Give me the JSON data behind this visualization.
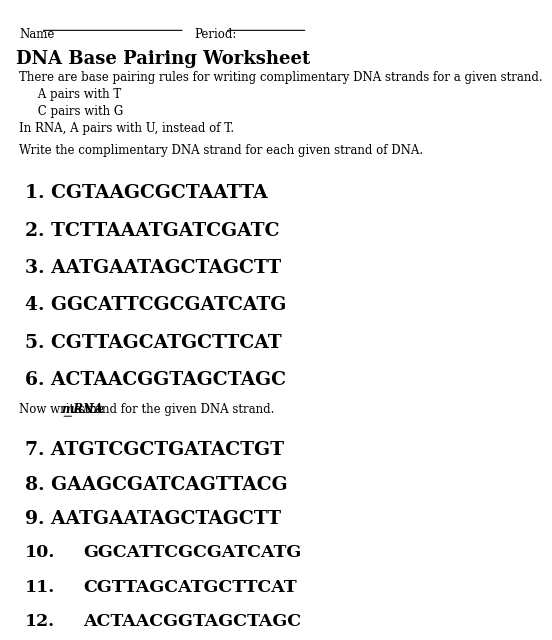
{
  "title": "DNA Base Pairing Worksheet",
  "intro_lines": [
    "There are base pairing rules for writing complimentary DNA strands for a given strand.",
    "     A pairs with T",
    "     C pairs with G",
    "In RNA, A pairs with U, instead of T."
  ],
  "dna_instruction": "Write the complimentary DNA strand for each given strand of DNA.",
  "dna_answers": [
    "1. CGTAAGCGCTAATTA",
    "2. TCTTAAATGATCGATC",
    "3. AATGAATAGCTAGCTT",
    "4. GGCATTCGCGATCATG",
    "5. CGTTAGCATGCTTCAT",
    "6. ACTAACGGTAGCTAGC"
  ],
  "mrna_prefix": "Now write the ",
  "mrna_bold": "mRNA",
  "mrna_suffix": " strand for the given DNA strand.",
  "mrna_answers": [
    [
      "7.",
      "ATGTCGCTGATACTGT"
    ],
    [
      "8.",
      "GAAGCGATCAGTTACG"
    ],
    [
      "9.",
      "AATGAATAGCTAGCTT"
    ],
    [
      "10.",
      "GGCATTCGCGATCATG"
    ],
    [
      "11.",
      "CGTTAGCATGCTTCAT"
    ],
    [
      "12.",
      "ACTAACGGTAGCTAGC"
    ]
  ],
  "bg_color": "#ffffff",
  "text_color": "#000000",
  "title_fontsize": 13,
  "body_fontsize": 8.5,
  "answer_fontsize": 13.5,
  "small_answer_fontsize": 12.5
}
